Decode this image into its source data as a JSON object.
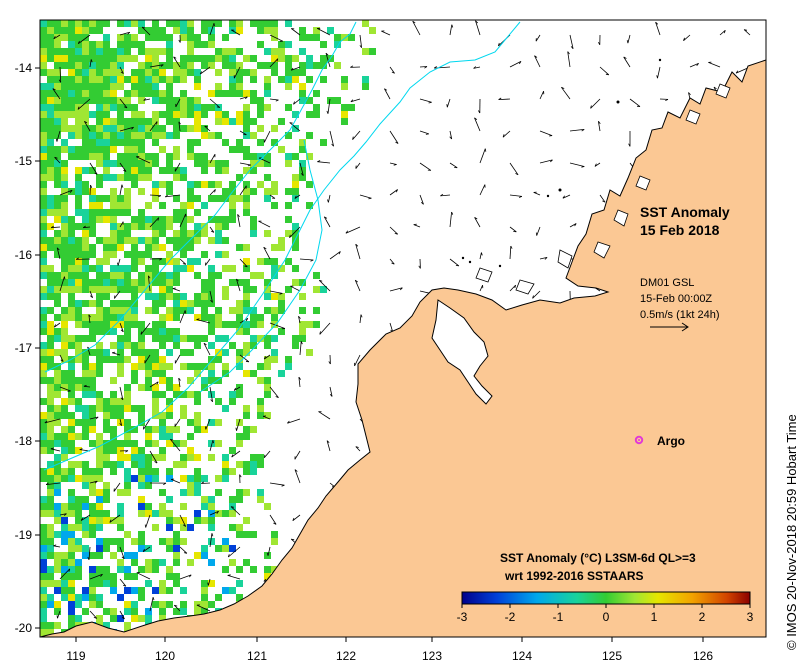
{
  "title": {
    "line1": "SST Anomaly",
    "line2": "15 Feb 2018"
  },
  "currents": {
    "line1": "DM01 GSL",
    "line2": "15-Feb 00:00Z",
    "line3": "0.5m/s (1kt 24h)"
  },
  "argo": {
    "label": "Argo",
    "color": "#e23ad6",
    "lon": 125.3,
    "lat": -18.0
  },
  "colorbar": {
    "title": "SST Anomaly (°C) L3SM-6d QL>=3",
    "subtitle": "wrt 1992-2016 SSTAARS",
    "ticks": [
      "-3",
      "-2",
      "-1",
      "0",
      "1",
      "2",
      "3"
    ]
  },
  "axes": {
    "x_ticks": [
      "119",
      "120",
      "121",
      "122",
      "123",
      "124",
      "125",
      "126"
    ],
    "y_ticks": [
      "-14",
      "-15",
      "-16",
      "-17",
      "-18",
      "-19",
      "-20"
    ],
    "xlim": [
      118.65,
      126.7
    ],
    "ylim": [
      -20.1,
      -13.5
    ]
  },
  "credit": "© IMOS 20-Nov-2018 20:59 Hobart Time",
  "colors": {
    "land": "#fbc894",
    "coast": "#000000",
    "ocean": "#ffffff",
    "contour": "#00d8ef",
    "anomaly_scale": [
      "#00008b",
      "#0040d8",
      "#00a8ec",
      "#19d39a",
      "#33cc33",
      "#a0e633",
      "#e6e600",
      "#f2a200",
      "#d24400",
      "#8b0000"
    ]
  }
}
